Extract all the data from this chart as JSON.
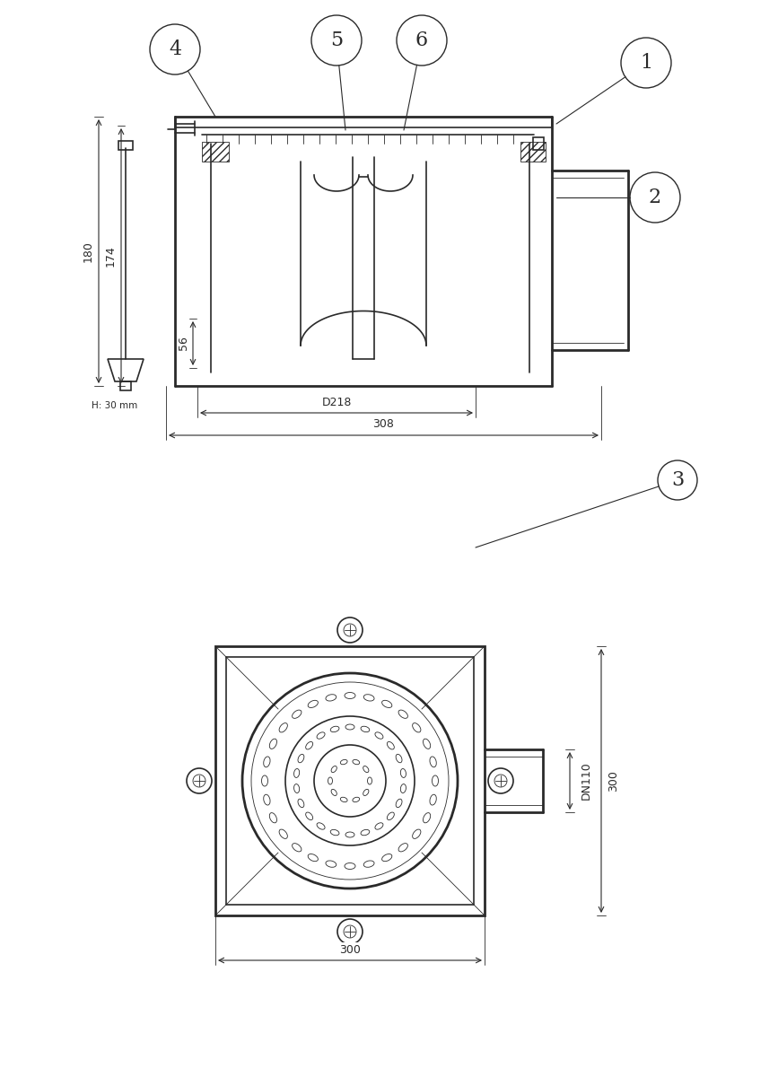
{
  "bg_color": "#ffffff",
  "line_color": "#2a2a2a",
  "line_width": 1.2,
  "thin_line": 0.6,
  "thick_line": 2.0,
  "fig_width": 8.67,
  "fig_height": 12.0,
  "dpi": 100,
  "labels": {
    "1": "1",
    "2": "2",
    "3": "3",
    "4": "4",
    "5": "5",
    "6": "6"
  },
  "dims": {
    "h180": "180",
    "h174": "174",
    "h56": "56",
    "d218": "D218",
    "w308": "308",
    "dn110": "DN110",
    "w300": "300",
    "hatch": "H: 30 mm"
  }
}
